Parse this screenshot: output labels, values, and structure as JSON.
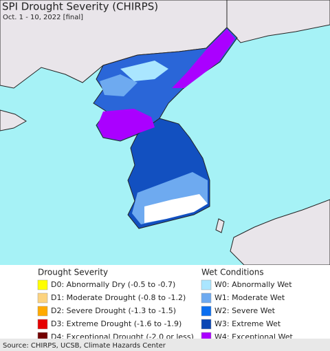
{
  "title": "SPI Drought Severity (CHIRPS)",
  "subtitle": "Oct. 1 - 10, 2022 [final]",
  "legend": {
    "drought": {
      "title": "Drought Severity",
      "items": [
        {
          "label": "D0: Abnormally Dry (-0.5 to -0.7)",
          "color": "#ffff00"
        },
        {
          "label": "D1: Moderate Drought (-0.8 to -1.2)",
          "color": "#fcd37f"
        },
        {
          "label": "D2: Severe Drought (-1.3 to -1.5)",
          "color": "#ffaa00"
        },
        {
          "label": "D3: Extreme Drought (-1.6 to -1.9)",
          "color": "#e60000"
        },
        {
          "label": "D4: Exceptional Drought (-2.0 or less)",
          "color": "#730000"
        }
      ]
    },
    "wet": {
      "title": "Wet Conditions",
      "items": [
        {
          "label": "W0: Abnormally Wet",
          "color": "#aae6ff"
        },
        {
          "label": "W1: Moderate Wet",
          "color": "#6eaaf0"
        },
        {
          "label": "W2: Severe Wet",
          "color": "#0a6ef0"
        },
        {
          "label": "W3: Extreme Wet",
          "color": "#0a46b4"
        },
        {
          "label": "W4: Exceptional Wet",
          "color": "#aa00ff"
        }
      ]
    }
  },
  "source": "Source: CHIRPS, UCSB, Climate Hazards Center"
}
